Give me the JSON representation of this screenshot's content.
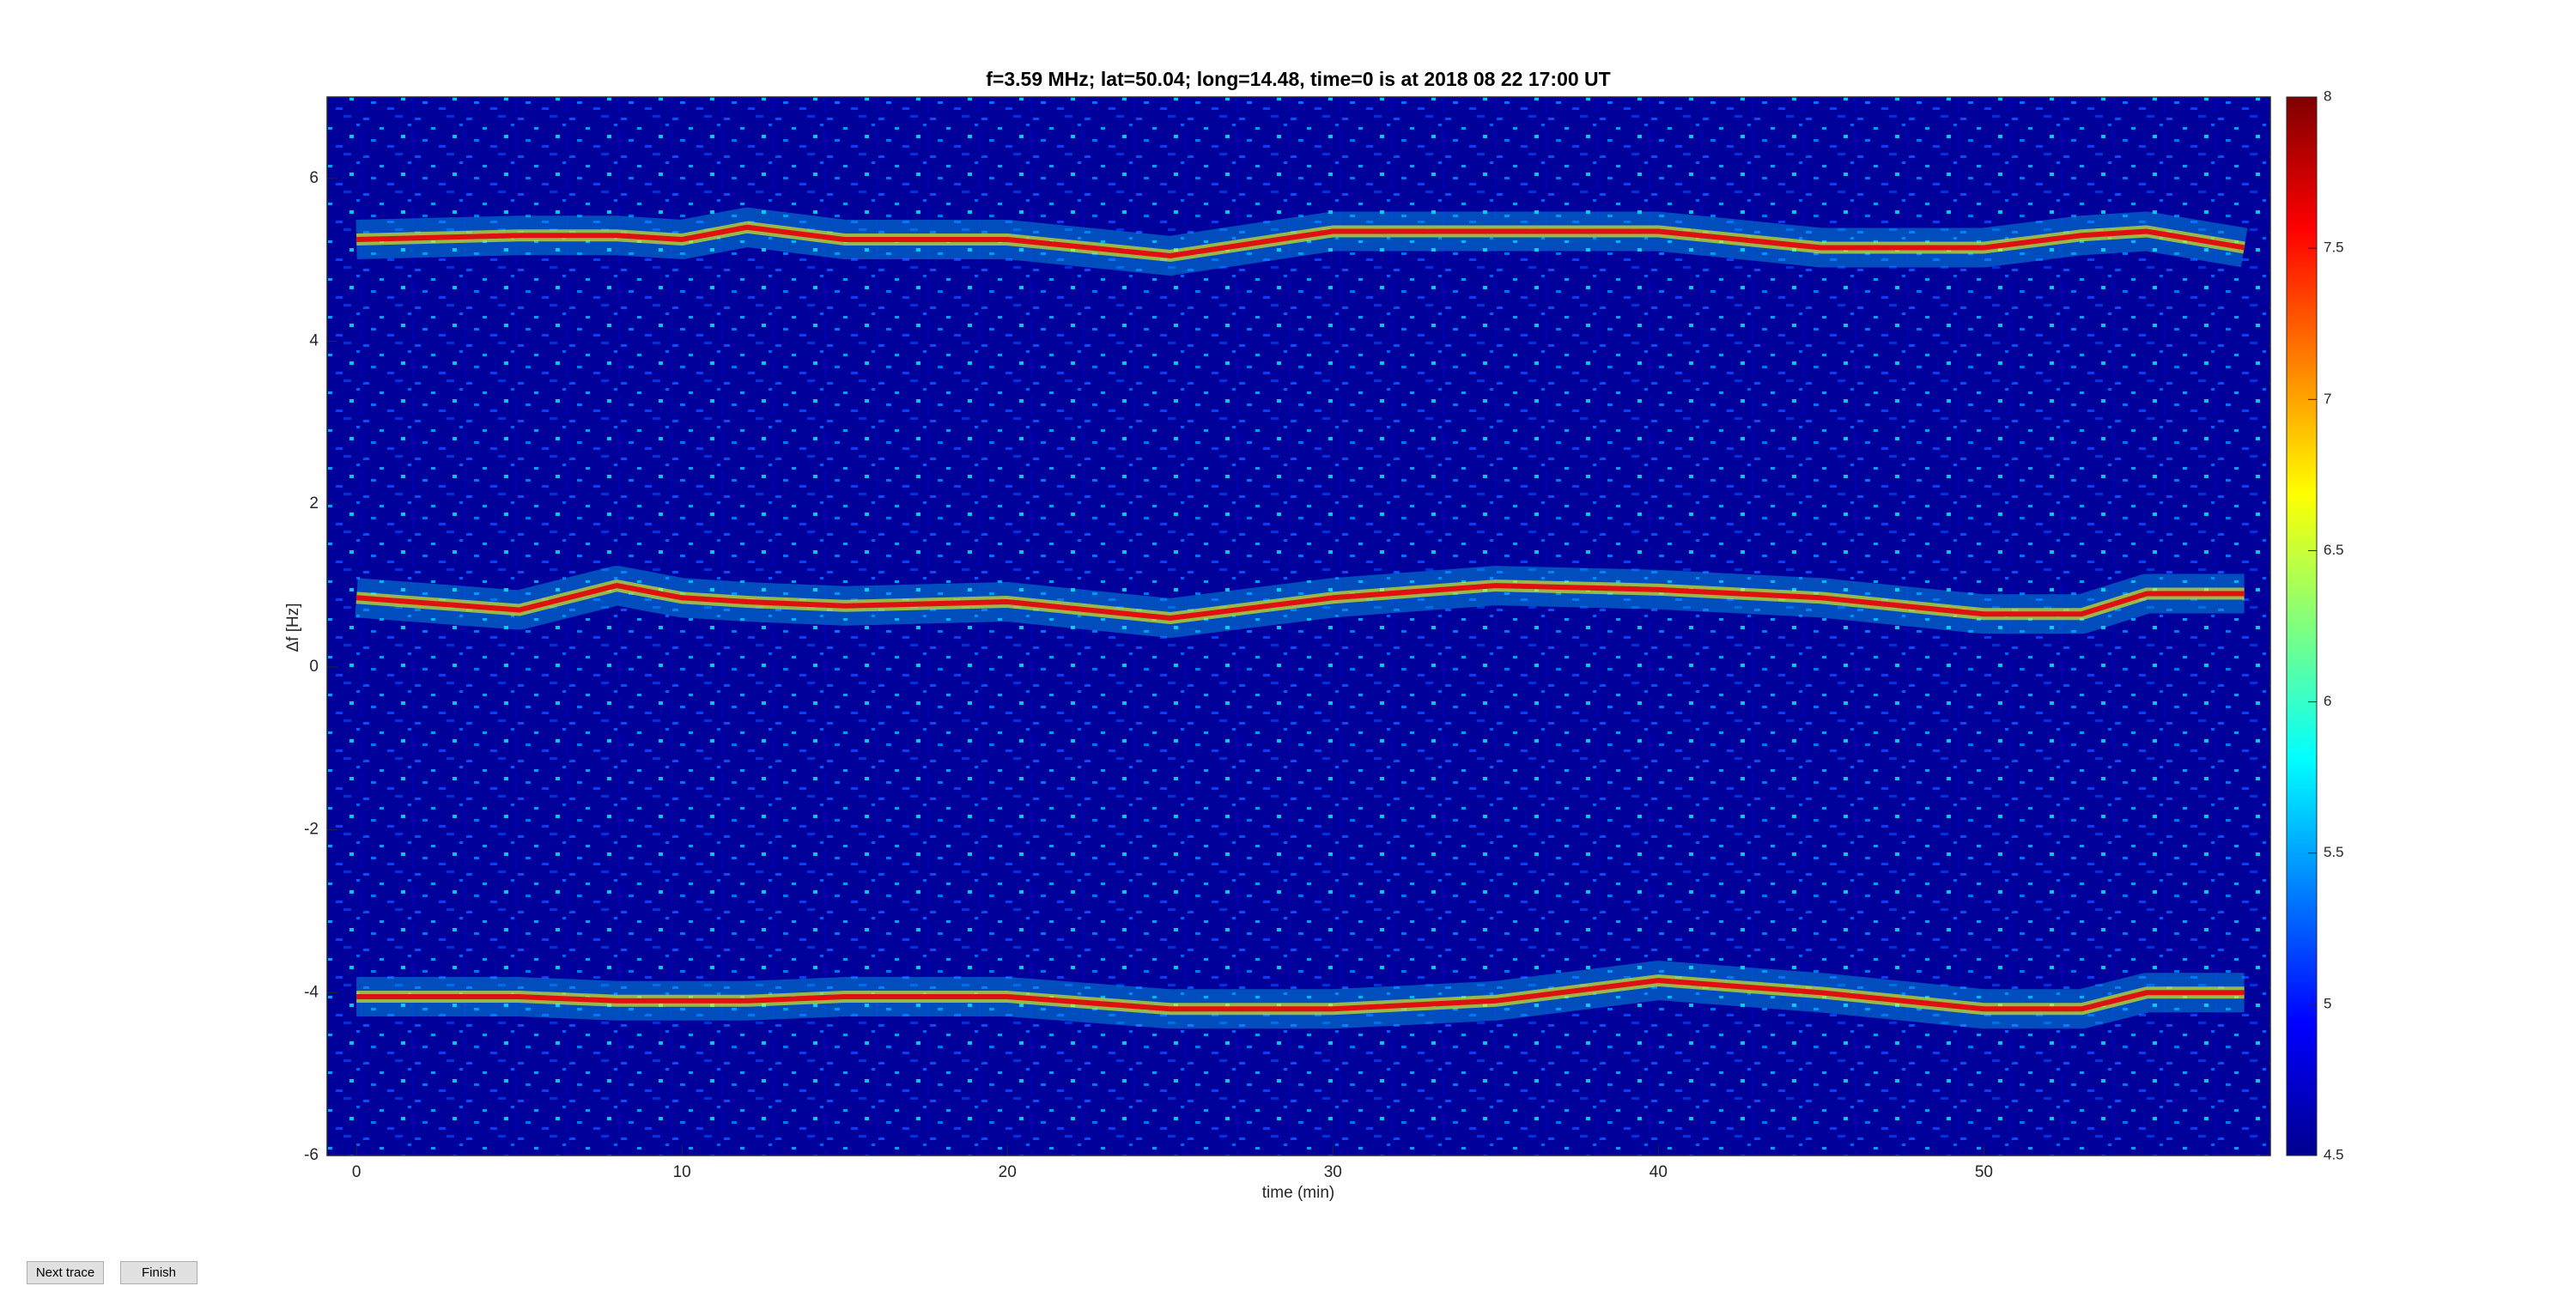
{
  "chart_data": {
    "type": "spectrogram",
    "title": "f=3.59 MHz;  lat=50.04; long=14.48, time=0 is at 2018 08 22 17:00 UT",
    "xlabel": "time (min)",
    "ylabel": "Δf [Hz]",
    "x": [
      0,
      5,
      8,
      10,
      12,
      15,
      20,
      25,
      30,
      35,
      40,
      45,
      50,
      53,
      55,
      58
    ],
    "series": [
      {
        "color": "#e01010",
        "values": [
          5.25,
          5.3,
          5.3,
          5.25,
          5.4,
          5.25,
          5.25,
          5.05,
          5.35,
          5.35,
          5.35,
          5.15,
          5.15,
          5.3,
          5.35,
          5.15
        ]
      },
      {
        "color": "#e01010",
        "values": [
          0.85,
          0.7,
          1.0,
          0.85,
          0.8,
          0.75,
          0.8,
          0.6,
          0.85,
          1.0,
          0.95,
          0.85,
          0.65,
          0.65,
          0.9,
          0.9
        ]
      },
      {
        "color": "#e01010",
        "values": [
          -4.05,
          -4.05,
          -4.1,
          -4.1,
          -4.1,
          -4.05,
          -4.05,
          -4.2,
          -4.2,
          -4.1,
          -3.85,
          -4.0,
          -4.2,
          -4.2,
          -4.0,
          -4.0
        ]
      }
    ],
    "xlim": [
      -0.9,
      58.8
    ],
    "xticks": [
      0,
      10,
      20,
      30,
      40,
      50
    ],
    "ylim": [
      -6,
      7
    ],
    "yticks": [
      -6,
      -4,
      -2,
      0,
      2,
      4,
      6
    ],
    "clim": [
      4.5,
      8
    ],
    "cticks": [
      4.5,
      5,
      5.5,
      6,
      6.5,
      7,
      7.5,
      8
    ],
    "colormap": "jet"
  },
  "buttons": [
    "Next trace",
    "Finish"
  ]
}
